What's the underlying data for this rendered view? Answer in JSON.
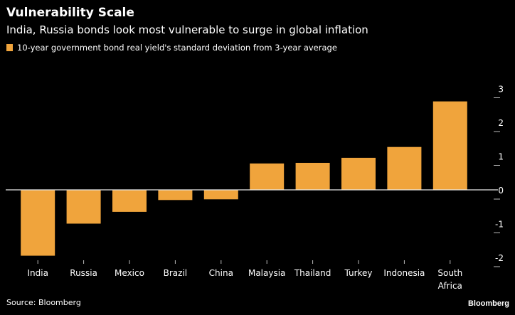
{
  "chart_data": {
    "type": "bar",
    "title": "Vulnerability Scale",
    "subtitle": "India, Russia bonds look most vulnerable to surge in global inflation",
    "categories": [
      "India",
      "Russia",
      "Mexico",
      "Brazil",
      "China",
      "Malaysia",
      "Thailand",
      "Turkey",
      "Indonesia",
      "South Africa"
    ],
    "series": [
      {
        "name": "10-year government bond real yield's standard deviation from 3-year average",
        "color": "#F0A43C",
        "values": [
          -1.95,
          -1.0,
          -0.65,
          -0.3,
          -0.28,
          0.78,
          0.8,
          0.95,
          1.27,
          2.62
        ]
      }
    ],
    "y_ticks": [
      3,
      2,
      1,
      0,
      -1,
      -2
    ],
    "y_tick_labels": [
      "3",
      "2",
      "1",
      "0",
      "-1",
      "-2"
    ],
    "ylim": [
      -2.2,
      3.2
    ],
    "axis_position": "right",
    "grid": false,
    "legend_position": "top-left"
  },
  "footer": {
    "source": "Source: Bloomberg",
    "brand": "Bloomberg"
  },
  "colors": {
    "background": "#000000",
    "text": "#FFFFFF",
    "bar": "#F0A43C",
    "axis": "#CCCCCC"
  }
}
